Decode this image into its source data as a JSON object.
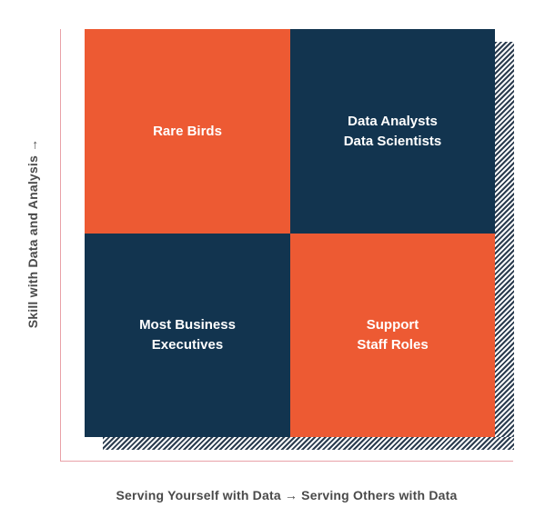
{
  "colors": {
    "orange": "#ed5a33",
    "navy": "#12344f",
    "axis": "#e9a1a8",
    "label": "#4a4a4a"
  },
  "axes": {
    "y_label": "Skill with Data and Analysis →",
    "x_label": "Serving Yourself with Data → Serving Others with Data"
  },
  "quadrants": [
    {
      "lines": "Rare Birds",
      "color": "#ed5a33"
    },
    {
      "lines": "Data Analysts\nData Scientists",
      "color": "#12344f"
    },
    {
      "lines": "Most Business\nExecutives",
      "color": "#12344f"
    },
    {
      "lines": "Support\nStaff Roles",
      "color": "#ed5a33"
    }
  ]
}
